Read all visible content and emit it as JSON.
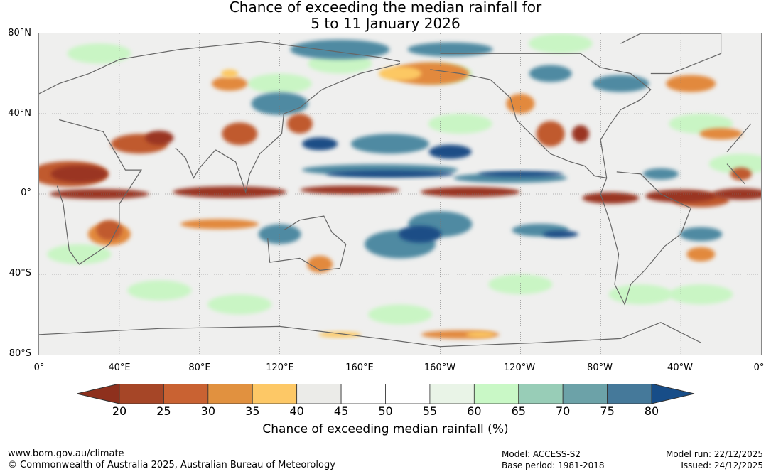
{
  "title": {
    "line1": "Chance of exceeding the median rainfall for",
    "line2": "5 to 11 January 2026"
  },
  "map": {
    "lat_labels": [
      "80°N",
      "40°N",
      "0°",
      "40°S",
      "80°S"
    ],
    "lon_labels": [
      "0°",
      "40°E",
      "80°E",
      "120°E",
      "160°E",
      "160°W",
      "120°W",
      "80°W",
      "40°W",
      "0°"
    ],
    "colors": {
      "dry_extreme": "#9a3420",
      "dry_strong": "#c05a2e",
      "dry_mod": "#e2893e",
      "dry_light": "#fcc863",
      "neutral": "#e8e8e6",
      "wet_light": "#c9f5c4",
      "wet_mod": "#97ccb5",
      "wet_strong": "#4f8aa2",
      "wet_extreme": "#1a4e86",
      "coast": "#666666"
    }
  },
  "colorbar": {
    "ticks": [
      "20",
      "25",
      "30",
      "35",
      "40",
      "45",
      "50",
      "55",
      "60",
      "65",
      "70",
      "75",
      "80"
    ],
    "colors": [
      "#a64627",
      "#c96232",
      "#e1913f",
      "#fdc866",
      "#ebebe8",
      "#ffffff",
      "#ffffff",
      "#e9f4e7",
      "#c9f8c6",
      "#98cdb7",
      "#6ca2a8",
      "#45799a"
    ],
    "low_color": "#8e301d",
    "high_color": "#174d88",
    "label": "Chance of exceeding median rainfall (%)"
  },
  "footer": {
    "url": "www.bom.gov.au/climate",
    "copyright": "© Commonwealth of Australia 2025, Australian Bureau of Meteorology",
    "model": "Model: ACCESS-S2",
    "base_period": "Base period: 1981-2018",
    "model_run": "Model run: 22/12/2025",
    "issued": "Issued: 24/12/2025"
  }
}
